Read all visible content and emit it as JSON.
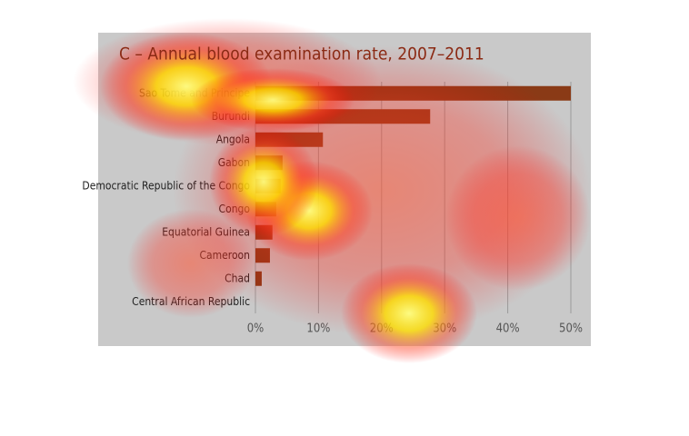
{
  "chart_data": {
    "type": "bar",
    "orientation": "horizontal",
    "title": "C – Annual blood examination rate, 2007–2011",
    "categories": [
      "Sao Tome and Principe",
      "Burundi",
      "Angola",
      "Gabon",
      "Democratic Republic of the Congo",
      "Congo",
      "Equatorial Guinea",
      "Cameroon",
      "Chad",
      "Central African Republic"
    ],
    "values": [
      50,
      27.7,
      10.7,
      4.3,
      4.0,
      3.3,
      2.7,
      2.3,
      1.0,
      0
    ],
    "color": "#8a3a16",
    "xlim": [
      0,
      50
    ],
    "xticks": [
      {
        "value": 0,
        "label": "0%"
      },
      {
        "value": 10,
        "label": "10%"
      },
      {
        "value": 20,
        "label": "20%"
      },
      {
        "value": 30,
        "label": "30%"
      },
      {
        "value": 40,
        "label": "40%"
      },
      {
        "value": 50,
        "label": "50%"
      }
    ],
    "grid": true
  }
}
